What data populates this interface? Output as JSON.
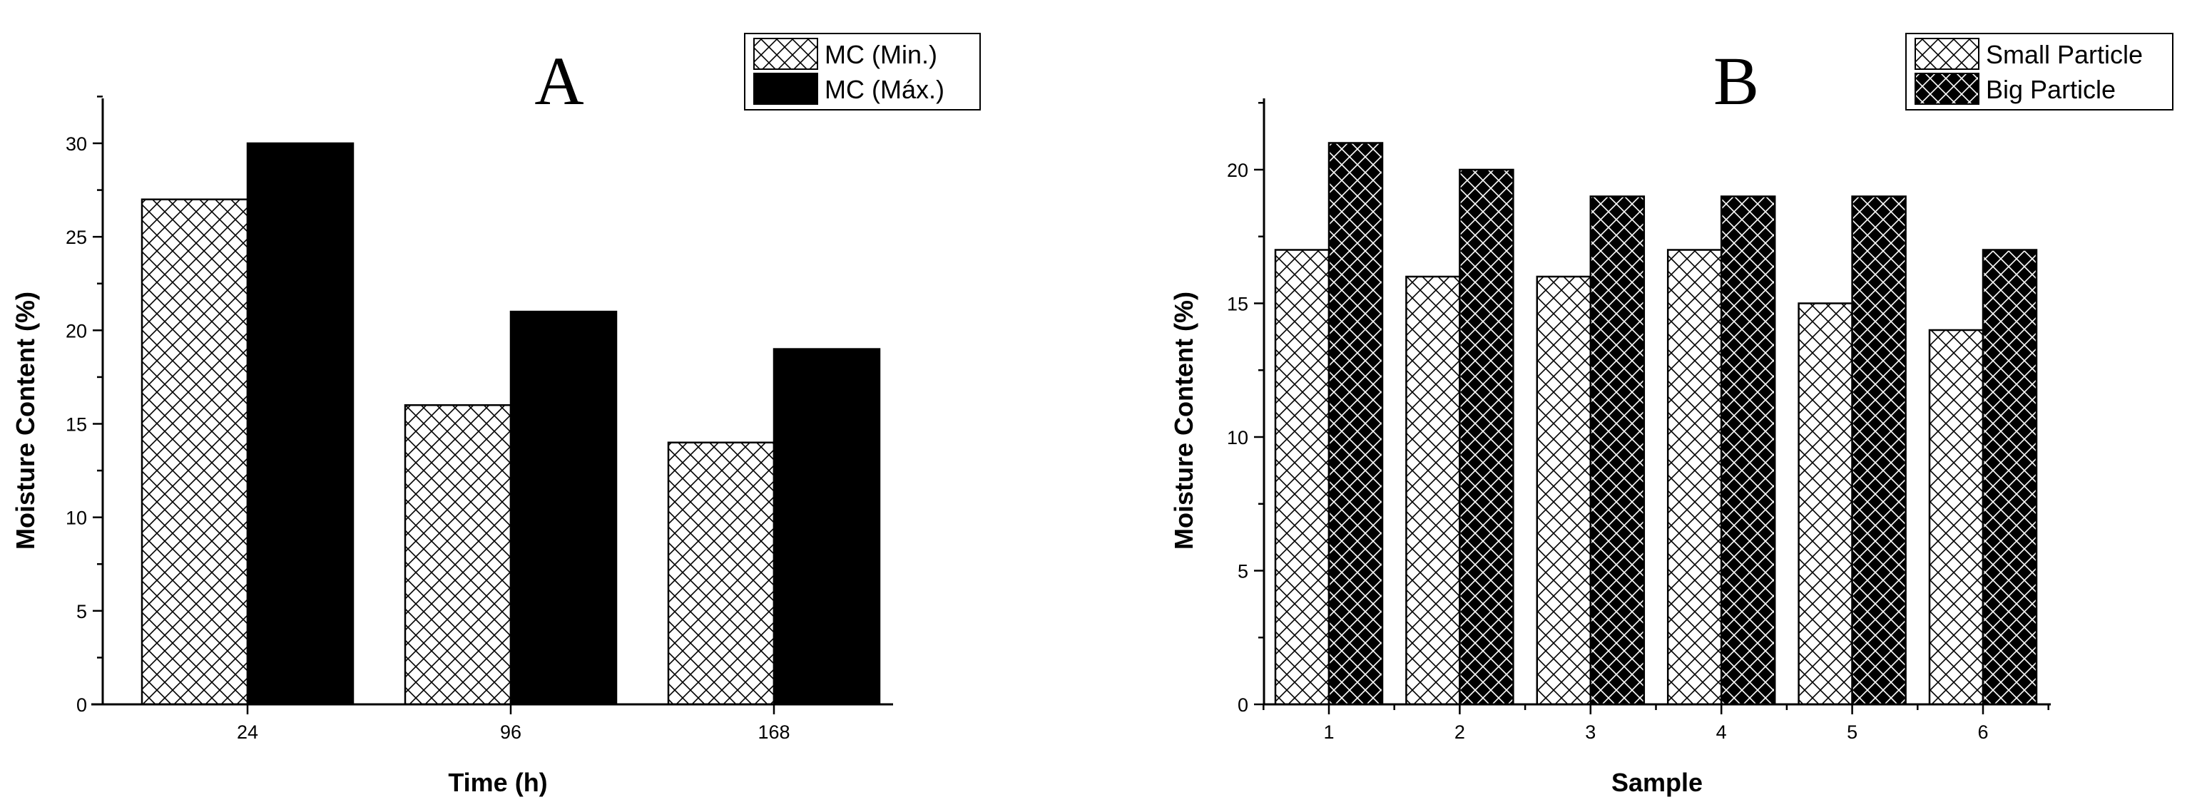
{
  "chart_data": [
    {
      "type": "bar",
      "title": "A",
      "xlabel": "Time (h)",
      "ylabel": "Moisture Content (%)",
      "categories": [
        "24",
        "96",
        "168"
      ],
      "ylim": [
        0,
        32.5
      ],
      "yticks": [
        0,
        5,
        10,
        15,
        20,
        25,
        30
      ],
      "grid": false,
      "legend_position": "top-right",
      "series": [
        {
          "name": "MC (Min.)",
          "values": [
            27,
            16,
            14
          ],
          "pattern": "crosshatch-white",
          "color": "#000000"
        },
        {
          "name": "MC (Máx.)",
          "values": [
            30,
            21,
            19
          ],
          "pattern": "solid-black",
          "color": "#000000"
        }
      ]
    },
    {
      "type": "bar",
      "title": "B",
      "xlabel": "Sample",
      "ylabel": "Moisture Content (%)",
      "categories": [
        "1",
        "2",
        "3",
        "4",
        "5",
        "6"
      ],
      "ylim": [
        0,
        22.8
      ],
      "yticks": [
        0,
        5,
        10,
        15,
        20
      ],
      "grid": false,
      "legend_position": "top-right",
      "series": [
        {
          "name": "Small Particle",
          "values": [
            17,
            16,
            16,
            17,
            15,
            14
          ],
          "pattern": "crosshatch-white",
          "color": "#000000"
        },
        {
          "name": "Big Particle",
          "values": [
            21,
            20,
            19,
            19,
            19,
            17
          ],
          "pattern": "crosshatch-black",
          "color": "#000000"
        }
      ]
    }
  ]
}
